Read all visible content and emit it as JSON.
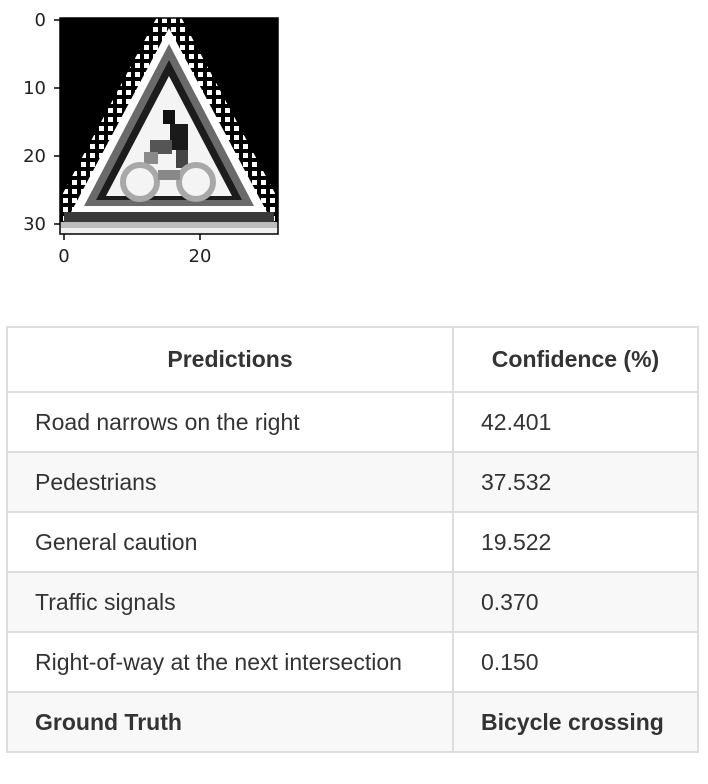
{
  "plot": {
    "y_ticks": [
      "0",
      "10",
      "20",
      "30"
    ],
    "x_ticks": [
      "0",
      "20"
    ],
    "image_subject": "bicycle-crossing-sign"
  },
  "table": {
    "headers": [
      "Predictions",
      "Confidence (%)"
    ],
    "rows": [
      {
        "label": "Road narrows on the right",
        "confidence": "42.401"
      },
      {
        "label": "Pedestrians",
        "confidence": "37.532"
      },
      {
        "label": "General caution",
        "confidence": "19.522"
      },
      {
        "label": "Traffic signals",
        "confidence": "0.370"
      },
      {
        "label": "Right-of-way at the next intersection",
        "confidence": "0.150"
      }
    ],
    "ground_truth": {
      "label": "Ground Truth",
      "value": "Bicycle crossing"
    }
  }
}
